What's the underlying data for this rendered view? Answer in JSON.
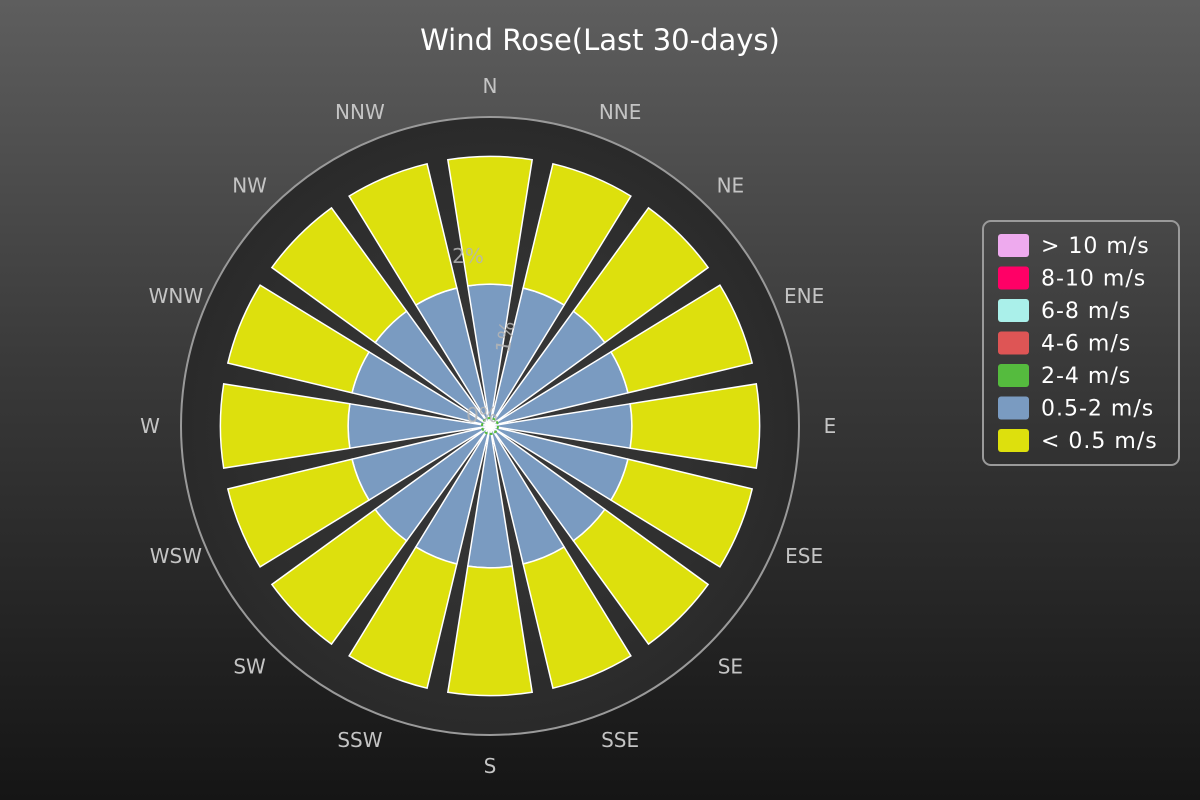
{
  "chart_data": {
    "type": "polar-stacked-bar",
    "title": "Wind Rose(Last 30-days)",
    "directions": [
      "N",
      "NNE",
      "NE",
      "ENE",
      "E",
      "ESE",
      "SE",
      "SSE",
      "S",
      "SSW",
      "SW",
      "WSW",
      "W",
      "WNW",
      "NW",
      "NNW"
    ],
    "series": [
      {
        "name": "< 0.5 m/s",
        "color": "#dde00d",
        "values": [
          1.8,
          1.8,
          1.8,
          1.8,
          1.8,
          1.8,
          1.8,
          1.8,
          1.8,
          1.8,
          1.8,
          1.8,
          1.8,
          1.8,
          1.8,
          1.8
        ]
      },
      {
        "name": "0.5-2 m/s",
        "color": "#7a9bc1",
        "values": [
          2.0,
          2.0,
          2.0,
          2.0,
          2.0,
          2.0,
          2.0,
          2.0,
          2.0,
          2.0,
          2.0,
          2.0,
          2.0,
          2.0,
          2.0,
          2.0
        ]
      },
      {
        "name": "2-4 m/s",
        "color": "#55bb3e",
        "values": [
          0,
          0,
          0,
          0,
          0,
          0,
          0,
          0,
          0,
          0,
          0,
          0,
          0,
          0,
          0,
          0
        ]
      },
      {
        "name": "4-6 m/s",
        "color": "#de5555",
        "values": [
          0,
          0,
          0,
          0,
          0,
          0,
          0,
          0,
          0,
          0,
          0,
          0,
          0,
          0,
          0,
          0
        ]
      },
      {
        "name": "6-8 m/s",
        "color": "#aaf0ea",
        "values": [
          0,
          0,
          0,
          0,
          0,
          0,
          0,
          0,
          0,
          0,
          0,
          0,
          0,
          0,
          0,
          0
        ]
      },
      {
        "name": "8-10 m/s",
        "color": "#ff0066",
        "values": [
          0,
          0,
          0,
          0,
          0,
          0,
          0,
          0,
          0,
          0,
          0,
          0,
          0,
          0,
          0,
          0
        ]
      },
      {
        "name": "> 10 m/s",
        "color": "#eeaaee",
        "values": [
          0,
          0,
          0,
          0,
          0,
          0,
          0,
          0,
          0,
          0,
          0,
          0,
          0,
          0,
          0,
          0
        ]
      }
    ],
    "stack_order": [
      "0.5-2 m/s",
      "< 0.5 m/s"
    ],
    "radial_ticks": [
      "0%",
      "1%",
      "2%"
    ],
    "radial_tick_values": [
      0,
      1,
      2
    ],
    "rmax": 4.2,
    "legend_order": [
      "> 10 m/s",
      "8-10 m/s",
      "6-8 m/s",
      "4-6 m/s",
      "2-4 m/s",
      "0.5-2 m/s",
      "< 0.5 m/s"
    ],
    "legend_position": "right",
    "grid": false,
    "colors": {
      "outer_ring": "#9a9a9a",
      "plot_bg": "#2f2f2f",
      "bar_stroke": "#ffffff",
      "legend_border": "#9a9a9a"
    }
  }
}
